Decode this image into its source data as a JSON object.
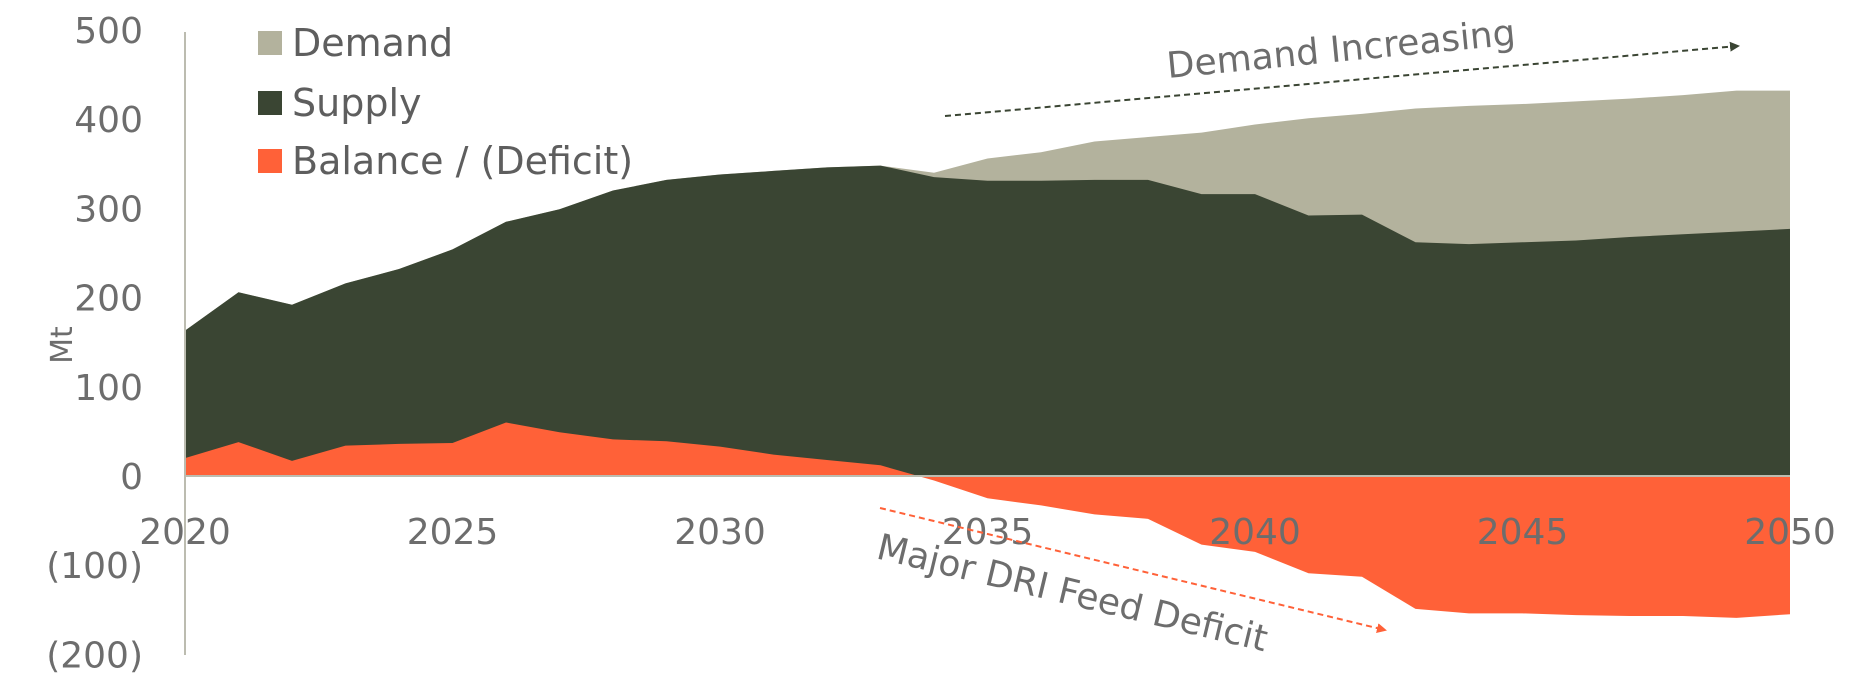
{
  "chart_data": {
    "type": "area",
    "title": "",
    "xlabel": "",
    "ylabel": "Mt",
    "xlim": [
      2020,
      2050
    ],
    "ylim": [
      -200,
      500
    ],
    "x_ticks": [
      {
        "value": 2020,
        "label": "2020"
      },
      {
        "value": 2025,
        "label": "2025"
      },
      {
        "value": 2030,
        "label": "2030"
      },
      {
        "value": 2035,
        "label": "2035"
      },
      {
        "value": 2040,
        "label": "2040"
      },
      {
        "value": 2045,
        "label": "2045"
      },
      {
        "value": 2050,
        "label": "2050"
      }
    ],
    "y_ticks": [
      {
        "value": 500,
        "label": "500"
      },
      {
        "value": 400,
        "label": "400"
      },
      {
        "value": 300,
        "label": "300"
      },
      {
        "value": 200,
        "label": "200"
      },
      {
        "value": 100,
        "label": "100"
      },
      {
        "value": 0,
        "label": "0"
      },
      {
        "value": -100,
        "label": "(100)"
      },
      {
        "value": -200,
        "label": "(200)"
      }
    ],
    "grid": false,
    "legend_position": "top-left",
    "x": [
      2020,
      2021,
      2022,
      2023,
      2024,
      2025,
      2026,
      2027,
      2028,
      2029,
      2030,
      2031,
      2032,
      2033,
      2034,
      2035,
      2036,
      2037,
      2038,
      2039,
      2040,
      2041,
      2042,
      2043,
      2044,
      2045,
      2046,
      2047,
      2048,
      2049,
      2050
    ],
    "series": [
      {
        "name": "Demand",
        "color": "#b3b29d",
        "values": [
          163,
          206,
          192,
          216,
          232,
          254,
          285,
          299,
          320,
          332,
          338,
          342,
          346,
          348,
          340,
          356,
          363,
          375,
          380,
          385,
          394,
          401,
          406,
          412,
          415,
          417,
          420,
          423,
          427,
          432,
          432
        ]
      },
      {
        "name": "Supply",
        "color": "#3a4533",
        "values": [
          163,
          206,
          192,
          216,
          232,
          254,
          285,
          299,
          320,
          332,
          338,
          342,
          346,
          348,
          335,
          331,
          331,
          332,
          332,
          316,
          316,
          292,
          293,
          262,
          260,
          262,
          264,
          268,
          271,
          274,
          277
        ]
      },
      {
        "name": "Balance / (Deficit)",
        "color": "#ff6138",
        "values": [
          20,
          38,
          17,
          34,
          36,
          37,
          60,
          49,
          41,
          39,
          33,
          24,
          18,
          12,
          -5,
          -25,
          -33,
          -43,
          -48,
          -77,
          -85,
          -109,
          -113,
          -149,
          -154,
          -154,
          -156,
          -157,
          -157,
          -159,
          -155
        ]
      }
    ],
    "annotations": [
      {
        "text": "Demand Increasing",
        "arrow_color": "#3a4533"
      },
      {
        "text": "Major DRI Feed Deficit",
        "arrow_color": "#ff6138"
      }
    ]
  }
}
